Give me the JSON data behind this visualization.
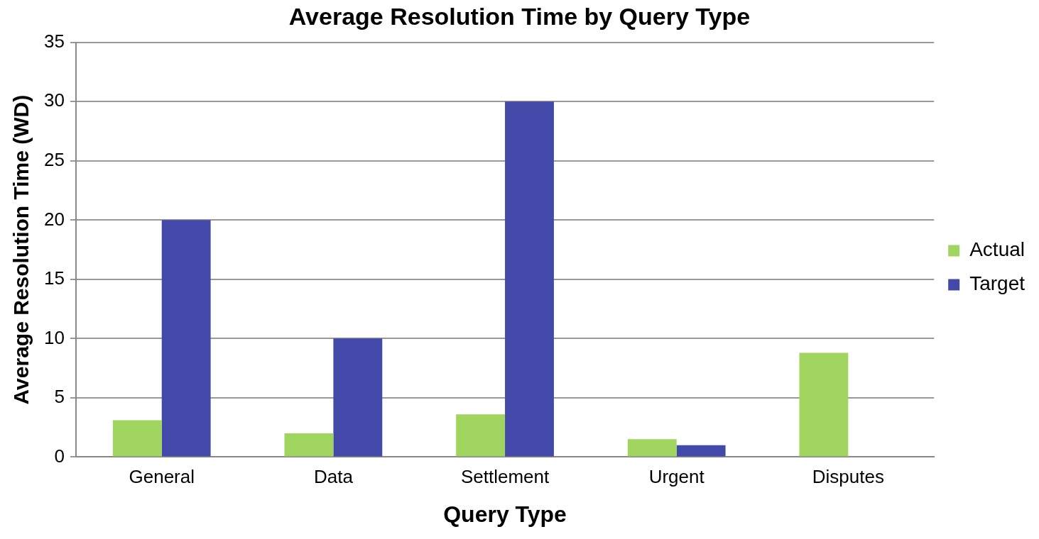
{
  "chart_data": {
    "type": "bar",
    "title": "Average Resolution Time by Query Type",
    "xlabel": "Query Type",
    "ylabel": "Average Resolution Time (WD)",
    "categories": [
      "General",
      "Data",
      "Settlement",
      "Urgent",
      "Disputes"
    ],
    "series": [
      {
        "name": "Actual",
        "color": "#a0d55f",
        "values": [
          3.1,
          2.0,
          3.6,
          1.5,
          8.8
        ]
      },
      {
        "name": "Target",
        "color": "#4349a9",
        "values": [
          20,
          10,
          30,
          1,
          null
        ]
      }
    ],
    "ylim": [
      0,
      35
    ],
    "yticks": [
      0,
      5,
      10,
      15,
      20,
      25,
      30,
      35
    ],
    "grid": "y",
    "legend": "right"
  }
}
